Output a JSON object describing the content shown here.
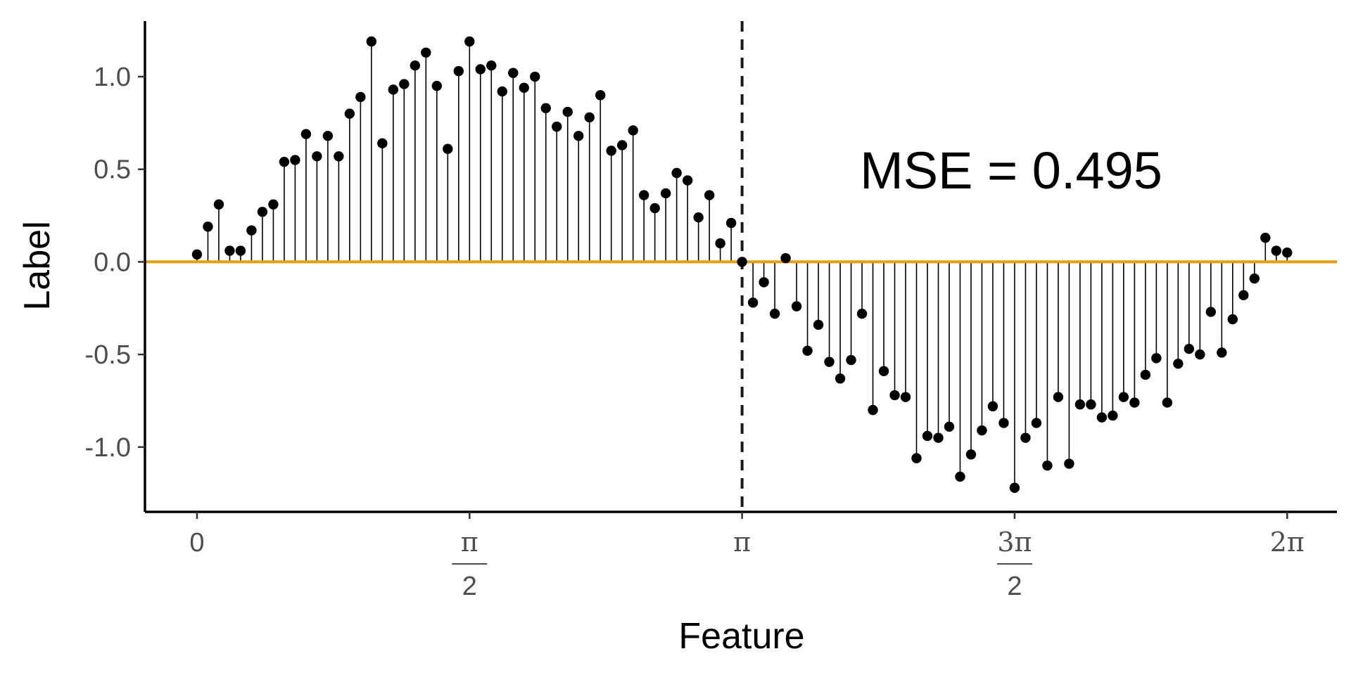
{
  "chart_data": {
    "type": "scatter",
    "style": "lollipop",
    "xlabel": "Feature",
    "ylabel": "Label",
    "xlim": [
      -0.3,
      6.57
    ],
    "ylim": [
      -1.35,
      1.3
    ],
    "grid": false,
    "x_ticks": [
      {
        "value": 0,
        "label": "0"
      },
      {
        "value": 1.5708,
        "num": "π",
        "den": "2"
      },
      {
        "value": 3.1416,
        "label": "π"
      },
      {
        "value": 4.7124,
        "num": "3π",
        "den": "2"
      },
      {
        "value": 6.2832,
        "label": "2π"
      }
    ],
    "y_ticks": [
      {
        "value": 1.0,
        "label": "1.0"
      },
      {
        "value": 0.5,
        "label": "0.5"
      },
      {
        "value": 0.0,
        "label": "0.0"
      },
      {
        "value": -0.5,
        "label": "-0.5"
      },
      {
        "value": -1.0,
        "label": "-1.0"
      }
    ],
    "points": [
      0.04,
      0.19,
      0.31,
      0.06,
      0.06,
      0.17,
      0.27,
      0.31,
      0.54,
      0.55,
      0.69,
      0.57,
      0.68,
      0.57,
      0.8,
      0.89,
      1.19,
      0.64,
      0.93,
      0.96,
      1.06,
      1.13,
      0.95,
      0.61,
      1.03,
      1.19,
      1.04,
      1.06,
      0.92,
      1.02,
      0.94,
      1.0,
      0.83,
      0.73,
      0.81,
      0.68,
      0.78,
      0.9,
      0.6,
      0.63,
      0.71,
      0.36,
      0.29,
      0.37,
      0.48,
      0.44,
      0.24,
      0.36,
      0.1,
      0.21,
      0.0,
      -0.22,
      -0.11,
      -0.28,
      0.02,
      -0.24,
      -0.48,
      -0.34,
      -0.54,
      -0.63,
      -0.53,
      -0.28,
      -0.8,
      -0.59,
      -0.72,
      -0.73,
      -1.06,
      -0.94,
      -0.95,
      -0.89,
      -1.16,
      -1.04,
      -0.91,
      -0.78,
      -0.87,
      -1.22,
      -0.95,
      -0.87,
      -1.1,
      -0.73,
      -1.09,
      -0.77,
      -0.77,
      -0.84,
      -0.83,
      -0.73,
      -0.76,
      -0.61,
      -0.52,
      -0.76,
      -0.55,
      -0.47,
      -0.5,
      -0.27,
      -0.49,
      -0.31,
      -0.18,
      -0.09,
      0.13,
      0.06,
      0.05
    ],
    "prediction_line": {
      "value": 0.0,
      "color": "#E69F00"
    },
    "split_line": {
      "x": 3.1416,
      "style": "dashed",
      "color": "#1a1a1a"
    },
    "annotation": "MSE = 0.495"
  }
}
